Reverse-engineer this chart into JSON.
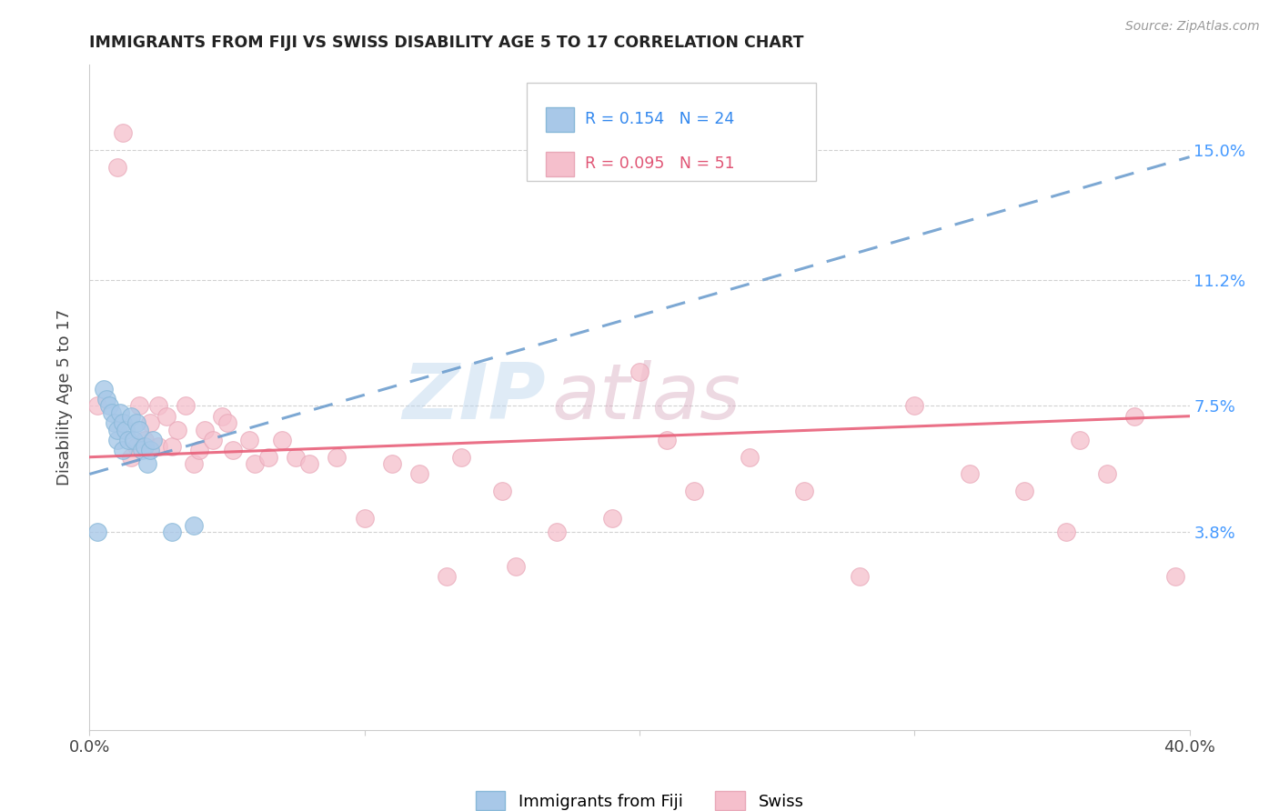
{
  "title": "IMMIGRANTS FROM FIJI VS SWISS DISABILITY AGE 5 TO 17 CORRELATION CHART",
  "source": "Source: ZipAtlas.com",
  "ylabel": "Disability Age 5 to 17",
  "xlim": [
    0.0,
    0.4
  ],
  "ylim": [
    -0.02,
    0.175
  ],
  "xticks": [
    0.0,
    0.1,
    0.2,
    0.3,
    0.4
  ],
  "xticklabels": [
    "0.0%",
    "",
    "",
    "",
    "40.0%"
  ],
  "ytick_positions": [
    0.038,
    0.075,
    0.112,
    0.15
  ],
  "ytick_labels": [
    "3.8%",
    "7.5%",
    "11.2%",
    "15.0%"
  ],
  "fiji_R": "0.154",
  "fiji_N": "24",
  "swiss_R": "0.095",
  "swiss_N": "51",
  "fiji_color": "#a8c8e8",
  "swiss_color": "#f5bfcc",
  "fiji_line_color": "#6699cc",
  "swiss_line_color": "#e8607a",
  "fiji_line_x0": 0.0,
  "fiji_line_y0": 0.055,
  "fiji_line_x1": 0.4,
  "fiji_line_y1": 0.148,
  "swiss_line_x0": 0.0,
  "swiss_line_y0": 0.06,
  "swiss_line_x1": 0.4,
  "swiss_line_y1": 0.072,
  "fiji_dots_x": [
    0.003,
    0.005,
    0.006,
    0.007,
    0.008,
    0.009,
    0.01,
    0.01,
    0.011,
    0.012,
    0.012,
    0.013,
    0.014,
    0.015,
    0.016,
    0.017,
    0.018,
    0.019,
    0.02,
    0.021,
    0.022,
    0.023,
    0.03,
    0.038
  ],
  "fiji_dots_y": [
    0.038,
    0.08,
    0.077,
    0.075,
    0.073,
    0.07,
    0.065,
    0.068,
    0.073,
    0.07,
    0.062,
    0.068,
    0.065,
    0.072,
    0.065,
    0.07,
    0.068,
    0.062,
    0.063,
    0.058,
    0.062,
    0.065,
    0.038,
    0.04
  ],
  "swiss_dots_x": [
    0.003,
    0.01,
    0.012,
    0.015,
    0.017,
    0.018,
    0.02,
    0.022,
    0.025,
    0.025,
    0.028,
    0.03,
    0.032,
    0.035,
    0.038,
    0.04,
    0.042,
    0.045,
    0.048,
    0.05,
    0.052,
    0.058,
    0.06,
    0.065,
    0.07,
    0.075,
    0.08,
    0.09,
    0.1,
    0.11,
    0.12,
    0.13,
    0.135,
    0.15,
    0.155,
    0.17,
    0.19,
    0.2,
    0.21,
    0.22,
    0.24,
    0.26,
    0.28,
    0.3,
    0.32,
    0.34,
    0.355,
    0.36,
    0.37,
    0.38,
    0.395
  ],
  "swiss_dots_y": [
    0.075,
    0.145,
    0.155,
    0.06,
    0.063,
    0.075,
    0.065,
    0.07,
    0.075,
    0.063,
    0.072,
    0.063,
    0.068,
    0.075,
    0.058,
    0.062,
    0.068,
    0.065,
    0.072,
    0.07,
    0.062,
    0.065,
    0.058,
    0.06,
    0.065,
    0.06,
    0.058,
    0.06,
    0.042,
    0.058,
    0.055,
    0.025,
    0.06,
    0.05,
    0.028,
    0.038,
    0.042,
    0.085,
    0.065,
    0.05,
    0.06,
    0.05,
    0.025,
    0.075,
    0.055,
    0.05,
    0.038,
    0.065,
    0.055,
    0.072,
    0.025
  ],
  "watermark_zip": "ZIP",
  "watermark_atlas": "atlas",
  "background_color": "#ffffff",
  "grid_color": "#cccccc"
}
